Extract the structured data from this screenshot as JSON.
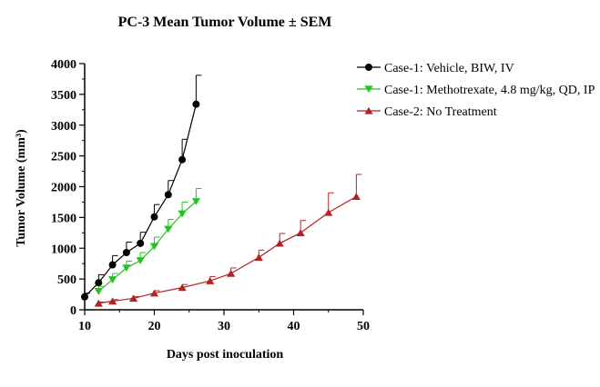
{
  "chart_data": {
    "type": "line",
    "title": "PC-3 Mean Tumor Volume ± SEM",
    "xlabel": "Days post inoculation",
    "ylabel": "Tumor Volume (mm³)",
    "xlim": [
      10,
      50
    ],
    "ylim": [
      0,
      4000
    ],
    "xticks": [
      "10",
      "20",
      "30",
      "40",
      "50"
    ],
    "yticks": [
      "0",
      "500",
      "1000",
      "1500",
      "2000",
      "2500",
      "3000",
      "3500",
      "4000"
    ],
    "grid": false,
    "legend_position": "top-right",
    "series": [
      {
        "name": "Case-1: Vehicle, BIW, IV",
        "color": "#000000",
        "marker": "circle",
        "x": [
          10,
          12,
          14,
          16,
          18,
          20,
          22,
          24,
          26
        ],
        "y": [
          210,
          440,
          730,
          930,
          1080,
          1510,
          1870,
          2440,
          3340
        ],
        "err": [
          60,
          130,
          150,
          170,
          180,
          200,
          230,
          330,
          470
        ]
      },
      {
        "name": "Case-1: Methotrexate, 4.8 mg/kg, QD, IP",
        "color": "#22c322",
        "marker": "triangle-down",
        "x": [
          12,
          14,
          16,
          18,
          20,
          22,
          24,
          26
        ],
        "y": [
          300,
          490,
          680,
          800,
          1030,
          1310,
          1560,
          1760
        ],
        "err": [
          80,
          100,
          110,
          130,
          150,
          160,
          190,
          210
        ]
      },
      {
        "name": "Case-2: No Treatment",
        "color": "#b22222",
        "marker": "triangle-up",
        "x": [
          12,
          14,
          17,
          20,
          24,
          28,
          31,
          35,
          38,
          41,
          45,
          49
        ],
        "y": [
          105,
          140,
          185,
          270,
          360,
          470,
          590,
          850,
          1080,
          1250,
          1580,
          1840
        ],
        "err": [
          20,
          25,
          30,
          40,
          50,
          70,
          90,
          120,
          160,
          200,
          320,
          360
        ]
      }
    ]
  }
}
